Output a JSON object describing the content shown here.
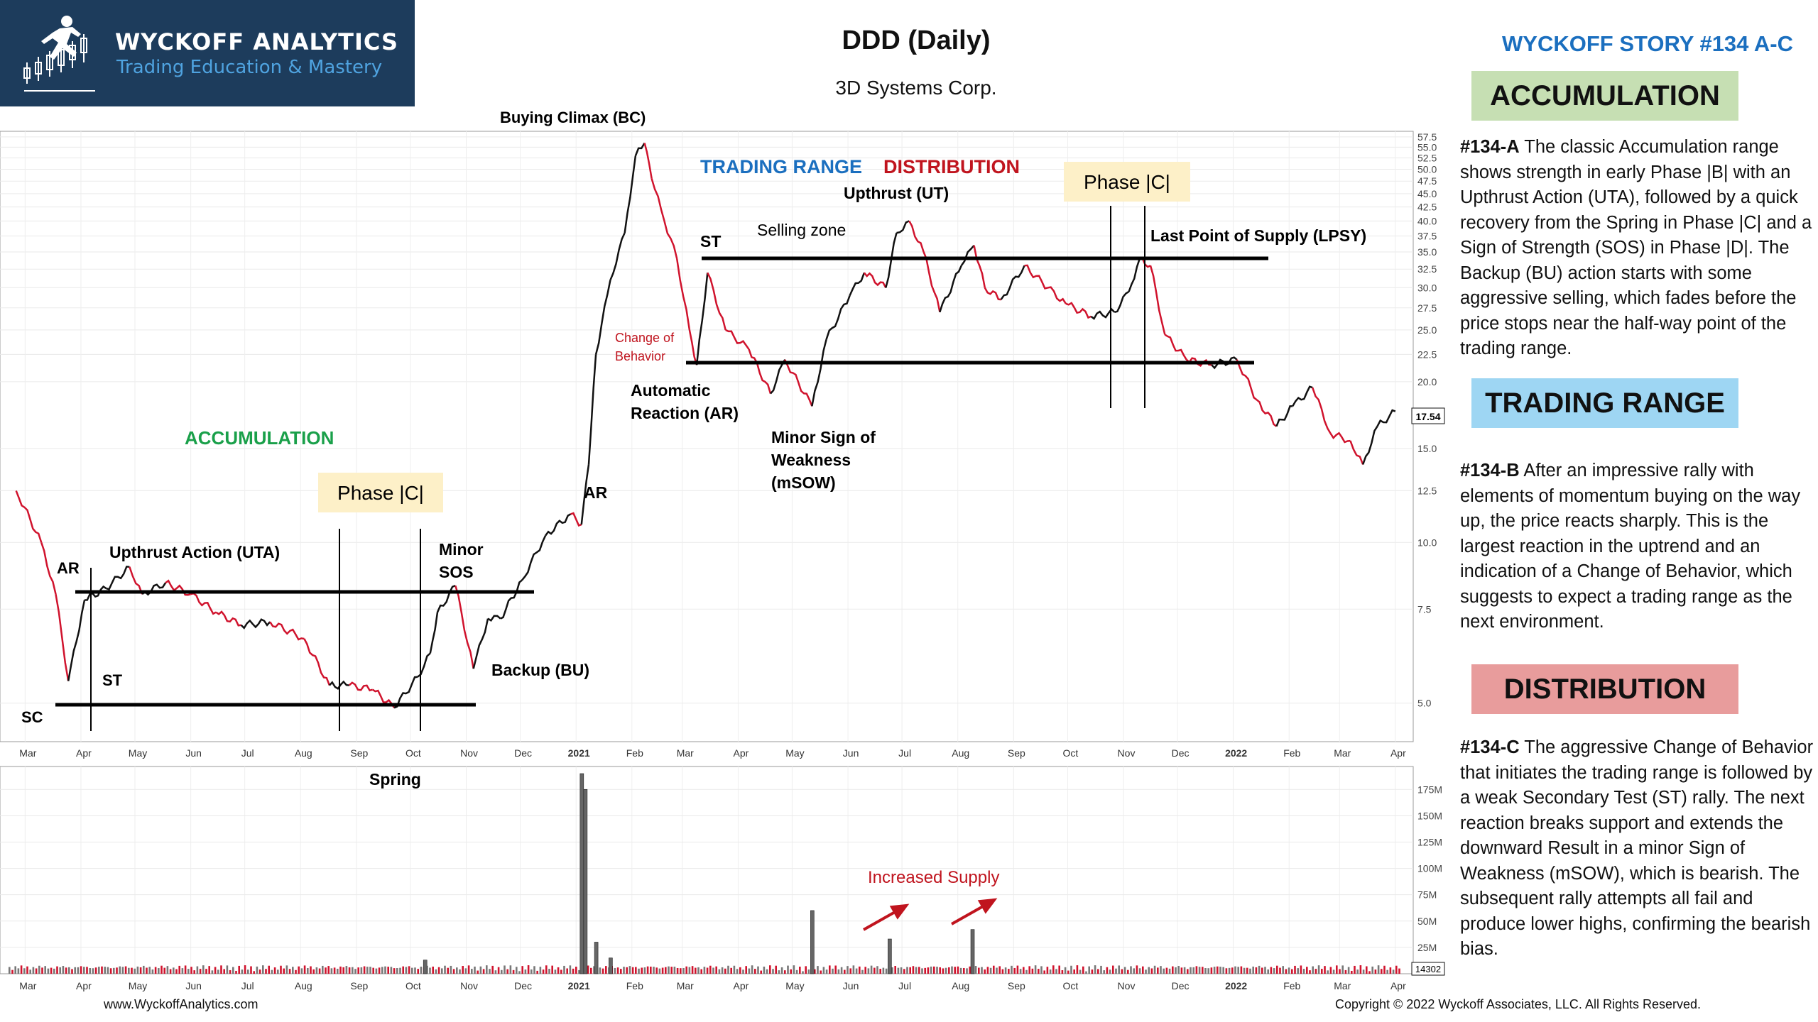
{
  "header": {
    "logo_title": "WYCKOFF ANALYTICS",
    "logo_subtitle": "Trading Education & Mastery",
    "chart_title": "DDD (Daily)",
    "chart_subtitle": "3D Systems Corp.",
    "story_title": "WYCKOFF STORY #134 A-C"
  },
  "sidebar": {
    "sections": [
      {
        "heading": "ACCUMULATION",
        "id_label": "#134-A",
        "text": "The classic Accumulation range shows strength in early Phase |B| with an Upthrust Action (UTA), followed by a quick recovery from the Spring in Phase |C| and a Sign of Strength (SOS) in Phase |D|. The Backup (BU) action starts with some aggressive selling, which fades before the price stops near the half-way point of the trading range."
      },
      {
        "heading": "TRADING RANGE",
        "id_label": "#134-B",
        "text": "After an impressive rally with elements of momentum buying on the way up, the price reacts sharply. This is the largest reaction in the uptrend and an indication of a Change of Behavior, which suggests to expect a trading range as the next environment."
      },
      {
        "heading": "DISTRIBUTION",
        "id_label": "#134-C",
        "text": "The aggressive Change of Behavior that initiates the trading range is followed by a weak Secondary Test (ST) rally. The next reaction breaks support and extends the downward Result in a minor Sign of Weakness (mSOW), which is bearish. The subsequent rally attempts all fail and produce lower highs, confirming the bearish bias."
      }
    ]
  },
  "footer": {
    "website": "www.WyckoffAnalytics.com",
    "copyright": "Copyright © 2022 Wyckoff Associates, LLC. All Rights Reserved."
  },
  "colors": {
    "logo_bg": "#1d3c5c",
    "accent_blue": "#1b6fbf",
    "accent_red": "#c0141e",
    "accent_green": "#1aa04a",
    "bar_up": "#111111",
    "bar_down": "#d0132d",
    "phase_box": "#fdf0c8"
  },
  "chart_data": [
    {
      "type": "line",
      "scale": "log",
      "title": "DDD (Daily)",
      "subtitle": "3D Systems Corp.",
      "last_price_label": "17.54",
      "y_ticks": [
        "57.5",
        "55.0",
        "52.5",
        "50.0",
        "47.5",
        "45.0",
        "42.5",
        "40.0",
        "37.5",
        "35.0",
        "32.5",
        "30.0",
        "27.5",
        "25.0",
        "22.5",
        "20.0",
        "15.0",
        "12.5",
        "10.0",
        "7.5",
        "5.0"
      ],
      "x_ticks": [
        "Mar",
        "Apr",
        "May",
        "Jun",
        "Jul",
        "Aug",
        "Sep",
        "Oct",
        "Nov",
        "Dec",
        "2021",
        "Feb",
        "Mar",
        "Apr",
        "May",
        "Jun",
        "Jul",
        "Aug",
        "Sep",
        "Oct",
        "Nov",
        "Dec",
        "2022",
        "Feb",
        "Mar",
        "Apr"
      ],
      "x": [
        "2020-02-25",
        "2020-03-10",
        "2020-03-18",
        "2020-03-25",
        "2020-04-03",
        "2020-04-15",
        "2020-04-28",
        "2020-05-05",
        "2020-05-18",
        "2020-06-01",
        "2020-06-15",
        "2020-06-29",
        "2020-07-15",
        "2020-08-03",
        "2020-08-17",
        "2020-08-28",
        "2020-09-10",
        "2020-09-22",
        "2020-10-05",
        "2020-10-12",
        "2020-10-16",
        "2020-10-26",
        "2020-11-05",
        "2020-11-13",
        "2020-11-20",
        "2020-12-02",
        "2020-12-15",
        "2020-12-29",
        "2021-01-04",
        "2021-01-08",
        "2021-01-12",
        "2021-01-20",
        "2021-01-28",
        "2021-02-03",
        "2021-02-08",
        "2021-02-12",
        "2021-02-19",
        "2021-02-26",
        "2021-03-05",
        "2021-03-09",
        "2021-03-15",
        "2021-03-25",
        "2021-04-07",
        "2021-04-19",
        "2021-04-27",
        "2021-05-12",
        "2021-05-20",
        "2021-06-02",
        "2021-06-10",
        "2021-06-22",
        "2021-06-28",
        "2021-07-05",
        "2021-07-13",
        "2021-07-22",
        "2021-08-03",
        "2021-08-10",
        "2021-08-16",
        "2021-08-25",
        "2021-09-07",
        "2021-09-20",
        "2021-09-30",
        "2021-10-14",
        "2021-10-27",
        "2021-11-04",
        "2021-11-10",
        "2021-11-16",
        "2021-11-24",
        "2021-12-06",
        "2021-12-20",
        "2022-01-03",
        "2022-01-14",
        "2022-01-25",
        "2022-02-03",
        "2022-02-14",
        "2022-02-24",
        "2022-03-07",
        "2022-03-14",
        "2022-03-22",
        "2022-04-01"
      ],
      "series": [
        {
          "values": [
            12.5,
            10.0,
            8.0,
            5.5,
            7.8,
            8.2,
            9.0,
            8.0,
            8.4,
            8.0,
            7.4,
            7.0,
            7.1,
            6.6,
            5.4,
            5.4,
            5.3,
            4.9,
            5.6,
            6.2,
            7.4,
            8.3,
            5.8,
            7.2,
            7.2,
            8.5,
            10.3,
            11.3,
            10.8,
            14.0,
            22.5,
            31.0,
            38.0,
            53.0,
            56.0,
            48.0,
            40.0,
            34.0,
            25.0,
            21.5,
            32.0,
            25.0,
            23.0,
            19.0,
            22.0,
            18.0,
            24.0,
            29.0,
            32.0,
            30.0,
            38.0,
            40.0,
            35.0,
            27.0,
            33.0,
            36.0,
            30.0,
            28.5,
            33.0,
            30.0,
            28.0,
            26.5,
            27.0,
            29.5,
            34.0,
            33.0,
            24.5,
            22.0,
            21.5,
            22.0,
            18.5,
            16.5,
            18.0,
            19.5,
            16.0,
            15.5,
            14.0,
            16.5,
            17.6
          ]
        }
      ]
    },
    {
      "type": "bar",
      "title": "",
      "y_ticks": [
        "175M",
        "150M",
        "125M",
        "100M",
        "75M",
        "50M",
        "25M"
      ],
      "last_volume_label": "14302",
      "ylim": [
        0,
        190
      ],
      "annotations": [
        {
          "text": "Increased Supply"
        }
      ],
      "x": [
        "2020-10-09",
        "2021-01-04",
        "2021-01-06",
        "2021-01-12",
        "2021-01-20",
        "2021-05-12",
        "2021-06-24",
        "2021-08-09"
      ],
      "series": [
        {
          "values": [
            13,
            190,
            175,
            30,
            15,
            60,
            33,
            42
          ]
        }
      ]
    }
  ],
  "labels": {
    "sc": "SC",
    "ar_left": "AR",
    "st_left": "ST",
    "upthrust_action": "Upthrust Action (UTA)",
    "accumulation": "ACCUMULATION",
    "phase_c": "Phase |C|",
    "minor_sos_1": "Minor",
    "minor_sos_2": "SOS",
    "backup": "Backup (BU)",
    "spring": "Spring",
    "ar_mid": "AR",
    "buying_climax": "Buying Climax (BC)",
    "trading_range": "TRADING RANGE",
    "distribution": "DISTRIBUTION",
    "upthrust": "Upthrust (UT)",
    "selling_zone": "Selling zone",
    "st_mid": "ST",
    "change_of": "Change of",
    "behavior": "Behavior",
    "automatic_1": "Automatic",
    "automatic_2": "Reaction (AR)",
    "msow_1": "Minor Sign of",
    "msow_2": "Weakness",
    "msow_3": "(mSOW)",
    "lpsy": "Last Point of Supply (LPSY)",
    "increased_supply": "Increased Supply"
  }
}
